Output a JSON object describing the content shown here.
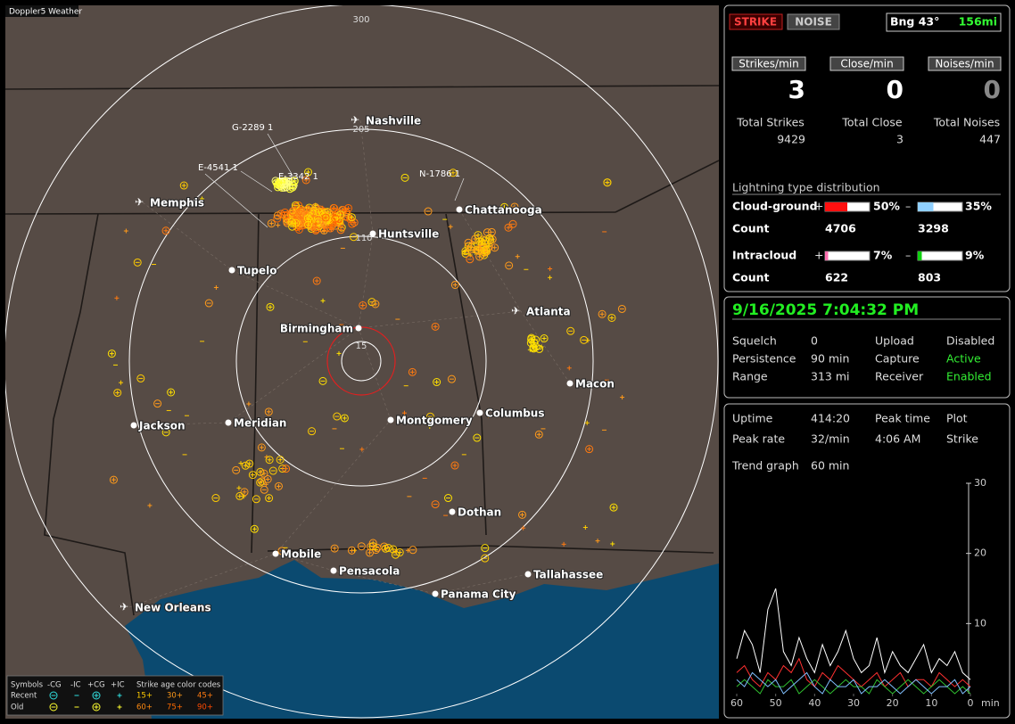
{
  "app": {
    "title": "Doppler5 Weather"
  },
  "map": {
    "range_labels": [
      "300",
      "205",
      "110",
      "15"
    ],
    "station_ids": [
      "G-2289 1",
      "E-4541 1",
      "E-3342 1",
      "N-1786 1"
    ],
    "cities": [
      "Nashville",
      "Memphis",
      "Chattanooga",
      "Huntsville",
      "Tupelo",
      "Atlanta",
      "Birmingham",
      "Macon",
      "Jackson",
      "Meridian",
      "Montgomery",
      "Columbus",
      "Dothan",
      "Mobile",
      "Pensacola",
      "Tallahassee",
      "Panama City",
      "New Orleans"
    ],
    "legend": {
      "symbols": "Symbols",
      "neg_cg": "-CG",
      "neg_ic": "-IC",
      "pos_cg": "+CG",
      "pos_ic": "+IC",
      "age_title": "Strike age color codes",
      "recent": "Recent",
      "old": "Old",
      "recent_ages": [
        "15+",
        "30+",
        "45+"
      ],
      "old_ages": [
        "60+",
        "75+",
        "90+"
      ]
    }
  },
  "status": {
    "strike_button": "STRIKE",
    "noise_button": "NOISE",
    "bearing": "Bng 43°",
    "distance": "156mi",
    "rate_buttons": [
      "Strikes/min",
      "Close/min",
      "Noises/min"
    ],
    "rates": [
      3,
      0,
      0
    ],
    "total_labels": [
      "Total Strikes",
      "Total Close",
      "Total Noises"
    ],
    "totals": [
      9429,
      3,
      447
    ],
    "distribution": {
      "title": "Lightning type distribution",
      "count_label": "Count",
      "rows": [
        {
          "name": "Cloud-ground",
          "pos_sign": "+",
          "neg_sign": "–",
          "pos": {
            "value": 50,
            "label": "50%"
          },
          "neg": {
            "value": 35,
            "label": "35%"
          },
          "pos_count": 4706,
          "neg_count": 3298
        },
        {
          "name": "Intracloud",
          "pos_sign": "+",
          "neg_sign": "–",
          "pos": {
            "value": 7,
            "label": "7%"
          },
          "neg": {
            "value": 9,
            "label": "9%"
          },
          "pos_count": 622,
          "neg_count": 803
        }
      ]
    }
  },
  "settings": {
    "datetime": "9/16/2025 7:04:32 PM",
    "rows": [
      [
        "Squelch",
        "0",
        "Upload",
        "Disabled"
      ],
      [
        "Persistence",
        "90 min",
        "Capture",
        "Active"
      ],
      [
        "Range",
        "313 mi",
        "Receiver",
        "Enabled"
      ]
    ]
  },
  "stats": {
    "rows": [
      [
        "Uptime",
        "414:20",
        "Peak time",
        "Plot"
      ],
      [
        "Peak rate",
        "32/min",
        "4:06 AM",
        "Strike"
      ],
      [
        "Trend graph",
        "60 min"
      ]
    ]
  },
  "trend": {
    "ylim": [
      0,
      30
    ],
    "yticks": [
      10,
      20,
      30
    ],
    "xlim": [
      60,
      0
    ],
    "xticks": [
      60,
      50,
      40,
      30,
      20,
      10,
      0
    ],
    "x_unit": "min",
    "x": [
      60,
      58,
      56,
      54,
      52,
      50,
      48,
      46,
      44,
      42,
      40,
      38,
      36,
      34,
      32,
      30,
      28,
      26,
      24,
      22,
      20,
      18,
      16,
      14,
      12,
      10,
      8,
      6,
      4,
      2,
      0
    ],
    "series": [
      {
        "color": "#ffffff",
        "values": [
          5,
          9,
          7,
          3,
          12,
          15,
          6,
          4,
          8,
          5,
          3,
          7,
          4,
          6,
          9,
          5,
          3,
          4,
          8,
          3,
          6,
          4,
          3,
          5,
          7,
          3,
          5,
          4,
          6,
          3,
          2
        ]
      },
      {
        "color": "#ff3030",
        "values": [
          3,
          4,
          2,
          1,
          3,
          2,
          4,
          3,
          5,
          2,
          1,
          3,
          2,
          4,
          3,
          2,
          1,
          2,
          3,
          1,
          2,
          3,
          1,
          2,
          2,
          1,
          3,
          2,
          1,
          2,
          1
        ]
      },
      {
        "color": "#30c030",
        "values": [
          1,
          2,
          1,
          0,
          2,
          1,
          1,
          2,
          0,
          1,
          2,
          1,
          0,
          1,
          2,
          1,
          1,
          0,
          2,
          1,
          0,
          1,
          2,
          1,
          0,
          1,
          2,
          1,
          0,
          1,
          0
        ]
      },
      {
        "color": "#80c0ff",
        "values": [
          2,
          1,
          3,
          2,
          1,
          2,
          0,
          1,
          2,
          3,
          1,
          0,
          2,
          1,
          1,
          2,
          0,
          1,
          1,
          2,
          1,
          0,
          1,
          2,
          1,
          0,
          1,
          1,
          2,
          0,
          1
        ]
      }
    ]
  }
}
